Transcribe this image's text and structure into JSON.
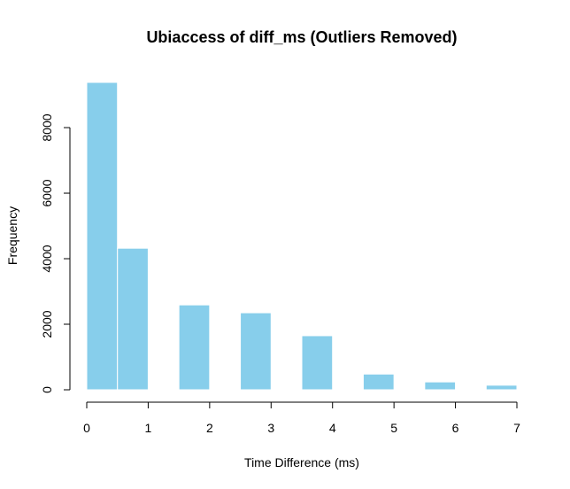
{
  "chart_data": {
    "type": "bar",
    "title": "Ubiaccess of diff_ms (Outliers Removed)",
    "xlabel": "Time Difference (ms)",
    "ylabel": "Frequency",
    "bins": [
      {
        "start": 0.0,
        "end": 0.5,
        "count": 9380
      },
      {
        "start": 0.5,
        "end": 1.0,
        "count": 4320
      },
      {
        "start": 1.0,
        "end": 1.5,
        "count": 0
      },
      {
        "start": 1.5,
        "end": 2.0,
        "count": 2590
      },
      {
        "start": 2.0,
        "end": 2.5,
        "count": 0
      },
      {
        "start": 2.5,
        "end": 3.0,
        "count": 2350
      },
      {
        "start": 3.0,
        "end": 3.5,
        "count": 0
      },
      {
        "start": 3.5,
        "end": 4.0,
        "count": 1650
      },
      {
        "start": 4.0,
        "end": 4.5,
        "count": 0
      },
      {
        "start": 4.5,
        "end": 5.0,
        "count": 480
      },
      {
        "start": 5.0,
        "end": 5.5,
        "count": 0
      },
      {
        "start": 5.5,
        "end": 6.0,
        "count": 240
      },
      {
        "start": 6.0,
        "end": 6.5,
        "count": 0
      },
      {
        "start": 6.5,
        "end": 7.0,
        "count": 140
      }
    ],
    "xticks": [
      0,
      1,
      2,
      3,
      4,
      5,
      6,
      7
    ],
    "xtick_labels": [
      "0",
      "1",
      "2",
      "3",
      "4",
      "5",
      "6",
      "7"
    ],
    "yticks": [
      0,
      2000,
      4000,
      6000,
      8000
    ],
    "ytick_labels": [
      "0",
      "2000",
      "4000",
      "6000",
      "8000"
    ],
    "xlim": [
      0,
      7
    ],
    "ylim": [
      0,
      9380
    ],
    "bar_color": "#87CEEB",
    "bar_edge_color": "#ffffff",
    "grid": false,
    "legend": "none"
  }
}
